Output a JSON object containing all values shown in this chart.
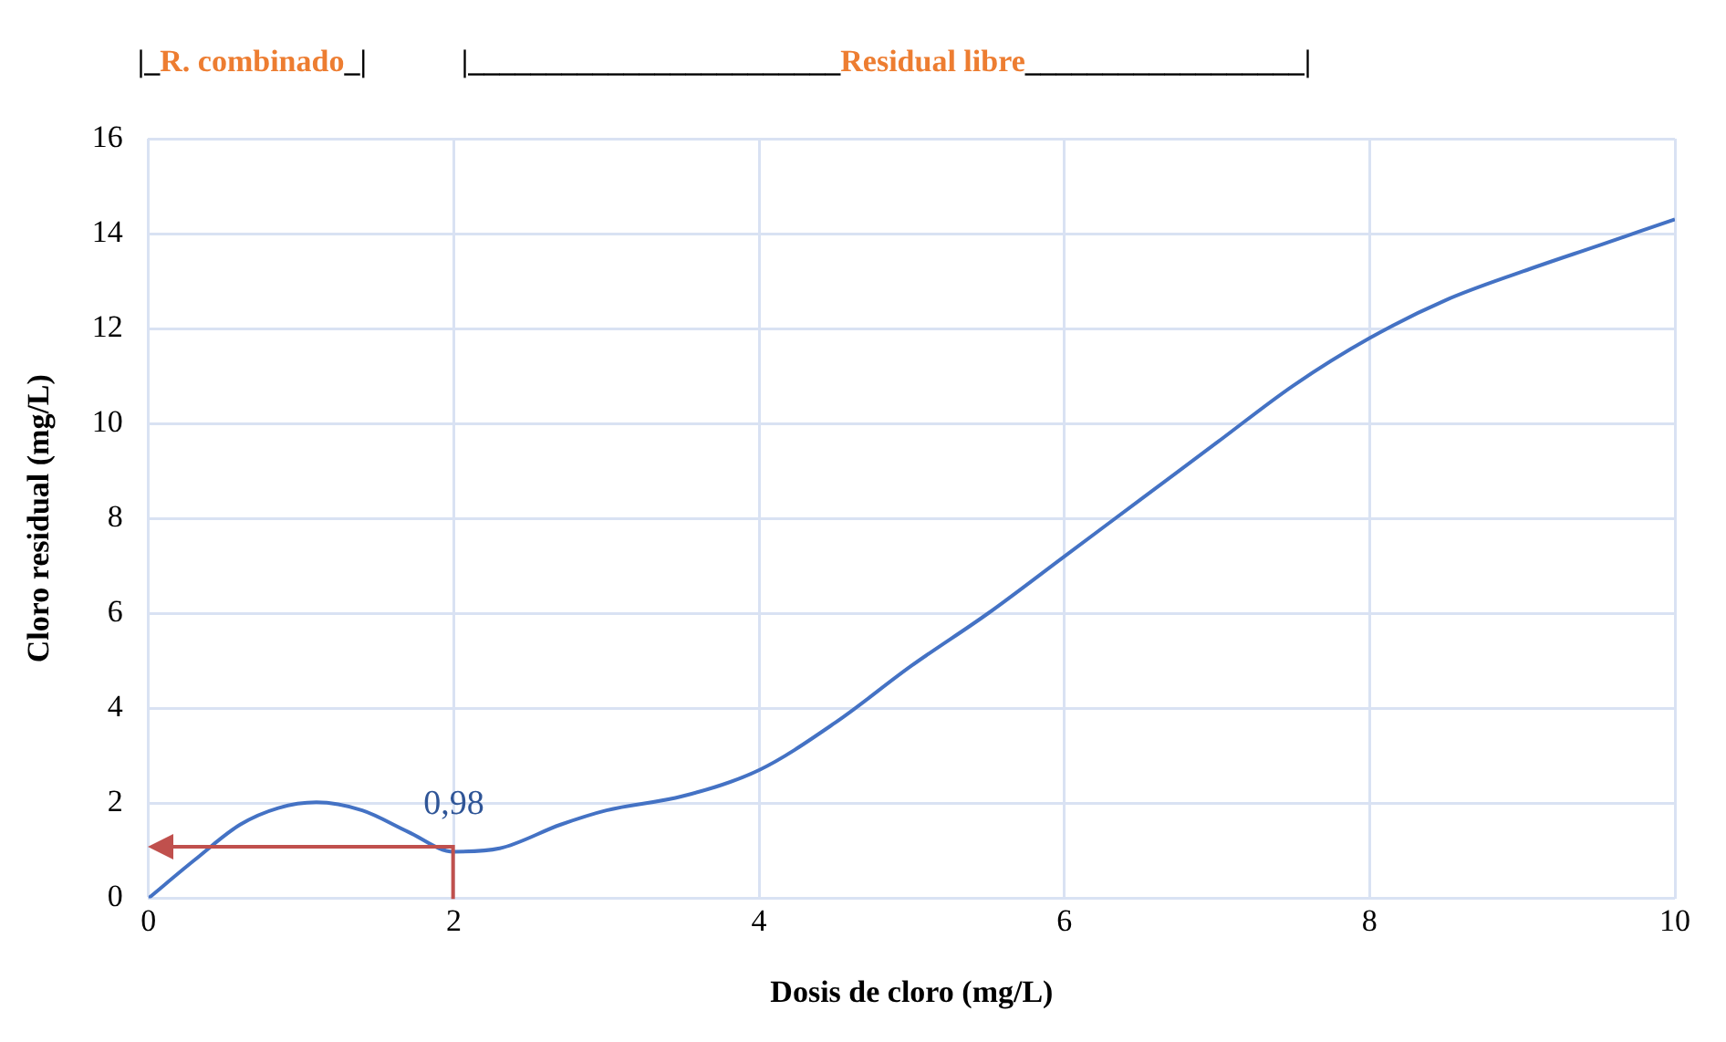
{
  "chart_data": {
    "type": "line",
    "xlabel": "Dosis de cloro (mg/L)",
    "ylabel": "Cloro residual (mg/L)",
    "x": [
      0,
      0.3,
      0.6,
      0.85,
      1.1,
      1.4,
      1.7,
      2,
      2.3,
      2.7,
      3,
      3.5,
      4,
      4.5,
      5,
      5.5,
      6,
      6.5,
      7,
      7.5,
      8,
      8.5,
      9,
      9.5,
      10
    ],
    "series": [
      {
        "color": "#4472c4",
        "values": [
          0,
          0.8,
          1.55,
          1.9,
          2.02,
          1.85,
          1.4,
          0.98,
          1.05,
          1.55,
          1.85,
          2.15,
          2.7,
          3.7,
          4.9,
          6.0,
          7.2,
          8.4,
          9.6,
          10.8,
          11.8,
          12.6,
          13.2,
          13.75,
          14.3
        ]
      }
    ],
    "xlim": [
      0,
      10
    ],
    "xticks": [
      0,
      2,
      4,
      6,
      8,
      10
    ],
    "ylim": [
      0,
      16
    ],
    "yticks": [
      0,
      2,
      4,
      6,
      8,
      10,
      12,
      14,
      16
    ],
    "grid": true,
    "legend": false,
    "marker": "none",
    "line_style": "solid",
    "annotations": [
      "|_R. combinado_|",
      "|________________________Residual libre__________________|",
      {
        "text": "0,98",
        "x": 2,
        "y": 0.98
      }
    ]
  }
}
